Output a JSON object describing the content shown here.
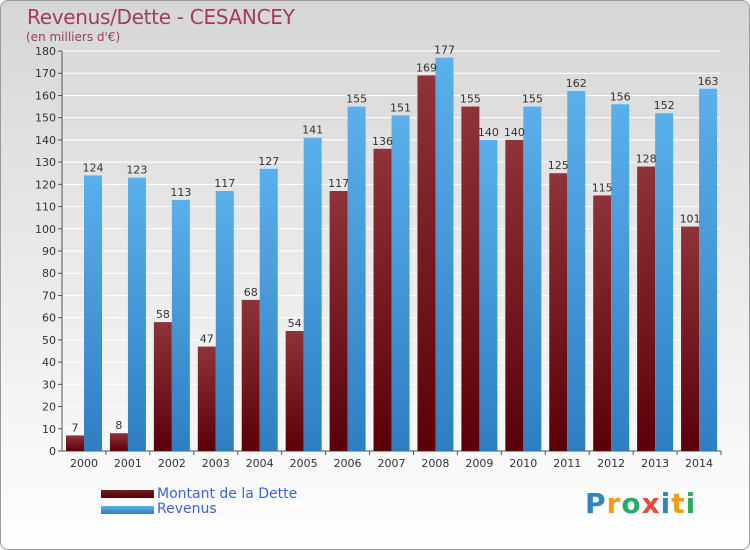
{
  "chart_data": {
    "type": "bar",
    "title": "Revenus/Dette - CESANCEY",
    "subtitle": "(en milliers d'€)",
    "categories": [
      "2000",
      "2001",
      "2002",
      "2003",
      "2004",
      "2005",
      "2006",
      "2007",
      "2008",
      "2009",
      "2010",
      "2011",
      "2012",
      "2013",
      "2014"
    ],
    "series": [
      {
        "name": "Montant de la Dette",
        "color": "#6a0f17",
        "values": [
          7,
          8,
          58,
          47,
          68,
          54,
          117,
          136,
          169,
          155,
          140,
          125,
          115,
          128,
          101
        ]
      },
      {
        "name": "Revenus",
        "color": "#3f97d8",
        "values": [
          124,
          123,
          113,
          117,
          127,
          141,
          155,
          151,
          177,
          140,
          155,
          162,
          156,
          152,
          163
        ]
      }
    ],
    "ylim": [
      0,
      180
    ],
    "ytick_step": 10,
    "grid": true,
    "legend_position": "bottom-left",
    "xlabel": "",
    "ylabel": ""
  },
  "brand": {
    "letters": [
      "P",
      "r",
      "o",
      "x",
      "i",
      "t",
      "i"
    ],
    "colors": [
      "#2e86c1",
      "#f39c12",
      "#27ae60",
      "#e74c3c",
      "#2e86c1",
      "#f39c12",
      "#27ae60"
    ]
  }
}
